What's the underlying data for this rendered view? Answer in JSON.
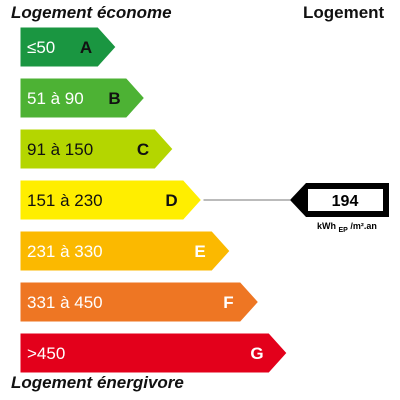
{
  "header": {
    "left": "Logement économe",
    "right": "Logement",
    "bottom": "Logement énergivore"
  },
  "chart_data": {
    "type": "bar",
    "categories": [
      "A",
      "B",
      "C",
      "D",
      "E",
      "F",
      "G"
    ],
    "ranges": [
      "≤50",
      "51 à 90",
      "91 à 150",
      "151 à 230",
      "231 à 330",
      "331 à 450",
      ">450"
    ],
    "colors": [
      "#1a9641",
      "#4db234",
      "#b4d600",
      "#ffee00",
      "#fbb900",
      "#ee7623",
      "#e3001b"
    ],
    "range_text_colors": [
      "#ffffff",
      "#ffffff",
      "#111111",
      "#111111",
      "#ffffff",
      "#ffffff",
      "#ffffff"
    ],
    "letter_colors": [
      "#111111",
      "#111111",
      "#111111",
      "#111111",
      "#ffffff",
      "#ffffff",
      "#ffffff"
    ],
    "value": 194,
    "value_class": "D",
    "value_label": "194",
    "unit_parts": [
      "kWh",
      "EP",
      "/m².an"
    ]
  }
}
